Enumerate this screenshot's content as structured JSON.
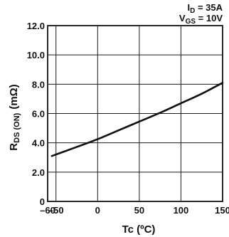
{
  "chart_data": {
    "type": "line",
    "xlabel": "Tc (ºC)",
    "ylabel": "RDS (ON) (mΩ)",
    "ylabel_main": "R",
    "ylabel_sub": "DS (ON)",
    "ylabel_unit": "(mΩ)",
    "xlim": [
      -60,
      150
    ],
    "ylim": [
      0,
      12
    ],
    "x_ticks": [
      -60,
      -50,
      0,
      50,
      100,
      150
    ],
    "x_tick_labels": [
      "–60",
      "–50",
      "0",
      "50",
      "100",
      "150"
    ],
    "y_ticks": [
      0,
      2,
      4,
      6,
      8,
      10,
      12
    ],
    "y_tick_labels": [
      "0",
      "2.0",
      "4.0",
      "6.0",
      "8.0",
      "10.0",
      "12.0"
    ],
    "grid": true,
    "conditions": [
      {
        "main": "I",
        "sub": "D",
        "rest": " = 35A"
      },
      {
        "main": "V",
        "sub": "GS",
        "rest": " = 10V"
      }
    ],
    "series": [
      {
        "color": "#111111",
        "x": [
          -55,
          -25,
          0,
          25,
          50,
          75,
          100,
          125,
          150
        ],
        "y": [
          3.1,
          3.72,
          4.25,
          4.85,
          5.45,
          6.05,
          6.7,
          7.35,
          8.1
        ]
      }
    ]
  }
}
